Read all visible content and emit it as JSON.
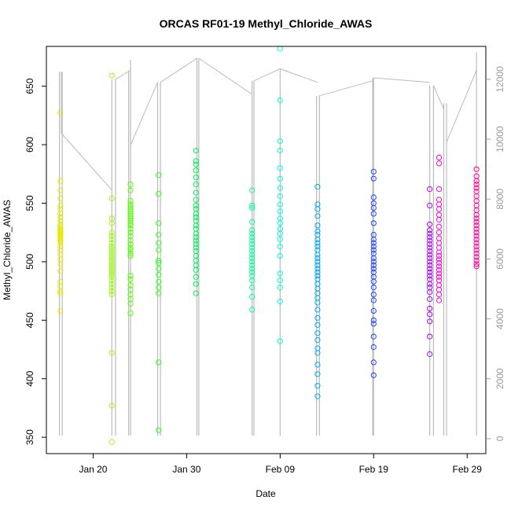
{
  "chart_data": {
    "type": "scatter",
    "title": "ORCAS RF01-19 Methyl_Chloride_AWAS",
    "xlabel": "Date",
    "ylabel": "Methyl_Chloride_AWAS",
    "x_domain": [
      "2016-01-15",
      "2016-03-02"
    ],
    "ylim": [
      336,
      684
    ],
    "y_ticks": [
      350,
      400,
      450,
      500,
      550,
      600,
      650
    ],
    "x_ticks": [
      {
        "date": "2016-01-20",
        "label": "Jan 20"
      },
      {
        "date": "2016-01-30",
        "label": "Jan 30"
      },
      {
        "date": "2016-02-09",
        "label": "Feb 09"
      },
      {
        "date": "2016-02-19",
        "label": "Feb 19"
      },
      {
        "date": "2016-02-29",
        "label": "Feb 29"
      }
    ],
    "y2_label": "",
    "y2lim": [
      -500,
      13100
    ],
    "y2_ticks": [
      0,
      2000,
      4000,
      6000,
      8000,
      10000,
      12000
    ],
    "colors": {
      "axis": "#000000",
      "secondary_axis": "#9a9a9a",
      "altitude_track": "#bbbbbb"
    },
    "series": [
      {
        "color": "#e7e700",
        "date": "2016-01-16.5",
        "values": [
          627,
          569,
          561,
          554,
          548,
          545,
          541,
          538,
          535,
          532,
          530,
          528,
          527,
          526,
          525,
          524,
          523,
          522,
          521,
          520,
          519,
          518,
          516,
          513,
          510,
          506,
          502,
          498,
          492,
          483,
          479,
          475,
          473,
          458
        ]
      },
      {
        "color": "#99ff00",
        "date": "2016-01-22",
        "values": [
          659,
          554,
          537,
          533,
          525,
          522,
          519,
          516,
          513,
          511,
          509,
          507,
          505,
          503,
          501,
          499,
          497,
          495,
          493,
          491,
          489,
          487,
          484,
          481,
          478,
          475,
          472,
          422,
          377,
          346
        ]
      },
      {
        "color": "#55ff00",
        "date": "2016-01-24",
        "values": [
          566,
          561,
          552,
          549,
          547,
          545,
          543,
          541,
          539,
          537,
          535,
          533,
          531,
          528,
          525,
          522,
          518,
          515,
          512,
          510,
          507,
          505,
          488,
          485,
          480,
          476,
          472,
          468,
          464,
          456
        ]
      },
      {
        "color": "#33ff22",
        "date": "2016-01-27",
        "values": [
          574,
          558,
          533,
          523,
          516,
          510,
          501,
          499,
          494,
          489,
          483,
          478,
          473,
          414,
          356
        ]
      },
      {
        "color": "#00ee55",
        "date": "2016-01-31",
        "values": [
          595,
          586,
          583,
          578,
          572,
          566,
          559,
          553,
          548,
          545,
          541,
          538,
          535,
          531,
          528,
          524,
          521,
          518,
          515,
          512,
          509,
          505,
          501,
          497,
          493,
          487,
          481,
          473
        ]
      },
      {
        "color": "#00ff99",
        "date": "2016-02-06",
        "values": [
          561,
          548,
          546,
          534,
          527,
          524,
          521,
          518,
          515,
          512,
          509,
          506,
          503,
          500,
          497,
          494,
          491,
          488,
          484,
          478,
          470,
          459
        ]
      },
      {
        "color": "#00ffdd",
        "date": "2016-02-09",
        "values": [
          682,
          638,
          603,
          595,
          580,
          571,
          563,
          556,
          549,
          543,
          537,
          533,
          528,
          524,
          519,
          513,
          505,
          490,
          484,
          478,
          466,
          432
        ]
      },
      {
        "color": "#00aaff",
        "date": "2016-02-13",
        "values": [
          564,
          549,
          545,
          539,
          531,
          526,
          523,
          519,
          516,
          513,
          510,
          506,
          503,
          500,
          497,
          494,
          491,
          488,
          485,
          481,
          477,
          473,
          469,
          465,
          459,
          452,
          446,
          439,
          433,
          426,
          422,
          412,
          404,
          394,
          385
        ]
      },
      {
        "color": "#2244ff",
        "date": "2016-02-19",
        "values": [
          577,
          571,
          555,
          550,
          546,
          541,
          533,
          523,
          519,
          516,
          513,
          510,
          507,
          503,
          500,
          497,
          494,
          491,
          487,
          483,
          478,
          472,
          467,
          458,
          450,
          447,
          436,
          427,
          414,
          403
        ]
      },
      {
        "color": "#aa00ff",
        "date": "2016-02-25",
        "values": [
          562,
          548,
          532,
          527,
          524,
          521,
          518,
          515,
          512,
          509,
          506,
          503,
          500,
          497,
          494,
          491,
          488,
          485,
          481,
          478,
          474,
          468,
          460,
          455,
          449,
          436,
          421
        ]
      },
      {
        "color": "#ff00dd",
        "date": "2016-02-26",
        "values": [
          589,
          584,
          562,
          553,
          549,
          545,
          540,
          536,
          530,
          525,
          520,
          516,
          512,
          508,
          505,
          502,
          499,
          496,
          493,
          490,
          487,
          484,
          480,
          476,
          472,
          467
        ]
      },
      {
        "color": "#ff0099",
        "date": "2016-03-01",
        "values": [
          579,
          573,
          569,
          566,
          563,
          560,
          556,
          552,
          548,
          544,
          540,
          537,
          534,
          531,
          528,
          525,
          522,
          519,
          516,
          513,
          510,
          507,
          504,
          501,
          498,
          496
        ]
      }
    ],
    "altitude_track": {
      "vertical_sweeps": [
        {
          "date": "2016-01-16.4",
          "low": 100,
          "high": 12250
        },
        {
          "date": "2016-01-16.7",
          "low": 100,
          "high": 12250
        },
        {
          "date": "2016-01-22.0",
          "low": 100,
          "high": 12000
        },
        {
          "date": "2016-01-22.4",
          "low": 100,
          "high": 12000
        },
        {
          "date": "2016-01-23.8",
          "low": 100,
          "high": 12300
        },
        {
          "date": "2016-01-24.0",
          "low": 100,
          "high": 12650
        },
        {
          "date": "2016-01-26.9",
          "low": 100,
          "high": 11900
        },
        {
          "date": "2016-01-27.2",
          "low": 100,
          "high": 11900
        },
        {
          "date": "2016-01-31.1",
          "low": 100,
          "high": 12700
        },
        {
          "date": "2016-01-31.3",
          "low": 100,
          "high": 12700
        },
        {
          "date": "2016-02-06.0",
          "low": 100,
          "high": 11950
        },
        {
          "date": "2016-02-06.2",
          "low": 100,
          "high": 11950
        },
        {
          "date": "2016-02-09.0",
          "low": 100,
          "high": 12350
        },
        {
          "date": "2016-02-12.9",
          "low": 100,
          "high": 11450
        },
        {
          "date": "2016-02-13.2",
          "low": 100,
          "high": 11450
        },
        {
          "date": "2016-02-18.9",
          "low": 100,
          "high": 12050
        },
        {
          "date": "2016-02-19.0",
          "low": 100,
          "high": 12050
        },
        {
          "date": "2016-02-25.0",
          "low": 100,
          "high": 11800
        },
        {
          "date": "2016-02-25.4",
          "low": 100,
          "high": 11800
        },
        {
          "date": "2016-02-26.5",
          "low": 100,
          "high": 11200
        },
        {
          "date": "2016-02-26.8",
          "low": 100,
          "high": 11200
        },
        {
          "date": "2016-03-01.0",
          "low": 100,
          "high": 12900
        }
      ],
      "transits": [
        [
          [
            "2016-01-16.6",
            12250
          ],
          [
            "2016-01-16.6",
            10200
          ],
          [
            "2016-01-22.0",
            8300
          ]
        ],
        [
          [
            "2016-01-22.4",
            12000
          ],
          [
            "2016-01-24.0",
            12300
          ]
        ],
        [
          [
            "2016-01-24.0",
            9800
          ],
          [
            "2016-01-26.9",
            11900
          ]
        ],
        [
          [
            "2016-01-27.2",
            11900
          ],
          [
            "2016-01-31.1",
            12700
          ],
          [
            "2016-01-31.1",
            2800
          ]
        ],
        [
          [
            "2016-01-31.3",
            12700
          ],
          [
            "2016-02-06.0",
            11500
          ]
        ],
        [
          [
            "2016-02-06.2",
            11950
          ],
          [
            "2016-02-09.0",
            12350
          ],
          [
            "2016-02-13.0",
            11900
          ]
        ],
        [
          [
            "2016-02-13.2",
            11450
          ],
          [
            "2016-02-18.9",
            11950
          ]
        ],
        [
          [
            "2016-02-19.0",
            12050
          ],
          [
            "2016-02-25.0",
            11900
          ]
        ],
        [
          [
            "2016-02-25.4",
            11800
          ],
          [
            "2016-02-26.5",
            11000
          ]
        ],
        [
          [
            "2016-02-26.8",
            9900
          ],
          [
            "2016-03-01.0",
            12300
          ]
        ]
      ]
    },
    "grid": false,
    "legend": "none"
  }
}
